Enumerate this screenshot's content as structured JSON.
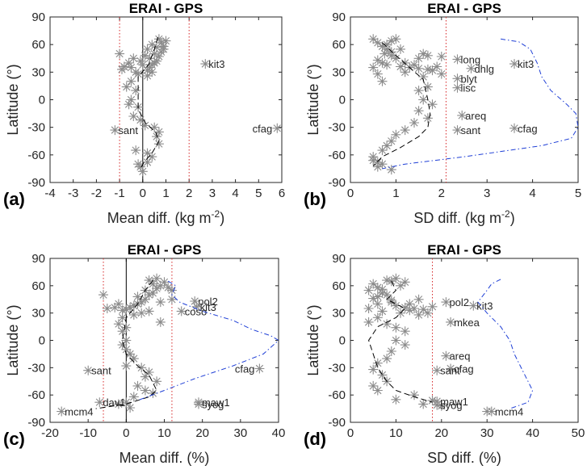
{
  "chart_data": [
    {
      "type": "scatter",
      "panel_label": "(a)",
      "title": "ERAI - GPS",
      "xlabel": "Mean diff. (kg m",
      "xlabel_sup": "-2",
      "xlabel_tail": ")",
      "ylabel": "Latitude (°)",
      "xlim": [
        -4,
        6
      ],
      "ylim": [
        -90,
        90
      ],
      "xticks": [
        -4,
        -3,
        -2,
        -1,
        0,
        1,
        2,
        3,
        4,
        5,
        6
      ],
      "yticks": [
        -90,
        -60,
        -30,
        0,
        30,
        60,
        90
      ],
      "vlines_solid": [
        0
      ],
      "vlines_dotted": [
        -1,
        2
      ],
      "stations": [
        {
          "name": "kit3",
          "x": 2.7,
          "y": 39
        },
        {
          "name": "cfag",
          "x": 5.8,
          "y": -31
        },
        {
          "name": "sant",
          "x": -1.2,
          "y": -33
        }
      ],
      "points": [
        [
          -1.0,
          50
        ],
        [
          -0.8,
          36
        ],
        [
          -0.9,
          33
        ],
        [
          -0.6,
          40
        ],
        [
          -0.4,
          45
        ],
        [
          -0.5,
          35
        ],
        [
          -0.3,
          30
        ],
        [
          -0.2,
          28
        ],
        [
          -0.5,
          20
        ],
        [
          -0.7,
          14
        ],
        [
          -0.3,
          10
        ],
        [
          -0.5,
          0
        ],
        [
          -0.6,
          -5
        ],
        [
          -0.2,
          -8
        ],
        [
          -0.4,
          -18
        ],
        [
          -0.1,
          -22
        ],
        [
          0.1,
          -28
        ],
        [
          0.5,
          -30
        ],
        [
          0.7,
          -35
        ],
        [
          0.6,
          -40
        ],
        [
          0.7,
          -48
        ],
        [
          -0.3,
          -55
        ],
        [
          0.2,
          -58
        ],
        [
          0.4,
          -62
        ],
        [
          -0.2,
          -70
        ],
        [
          0.2,
          -68
        ],
        [
          0.0,
          -78
        ],
        [
          -0.1,
          -73
        ],
        [
          0.2,
          32
        ],
        [
          0.3,
          35
        ],
        [
          0.4,
          38
        ],
        [
          0.5,
          40
        ],
        [
          0.6,
          42
        ],
        [
          0.3,
          45
        ],
        [
          0.7,
          47
        ],
        [
          0.5,
          50
        ],
        [
          0.8,
          52
        ],
        [
          0.9,
          55
        ],
        [
          0.6,
          57
        ],
        [
          0.4,
          60
        ],
        [
          0.8,
          62
        ],
        [
          1.0,
          64
        ],
        [
          0.9,
          58
        ],
        [
          0.7,
          66
        ],
        [
          0.2,
          55
        ],
        [
          -0.1,
          42
        ],
        [
          0.1,
          48
        ],
        [
          0.0,
          38
        ],
        [
          0.2,
          26
        ],
        [
          0.4,
          30
        ]
      ],
      "series": [
        {
          "name": "mean",
          "style": "dashed-black",
          "x": [
            0.65,
            0.5,
            0.25,
            -0.2,
            -0.2,
            0.1,
            0.55,
            0.7,
            0.4,
            0.05,
            -0.1
          ],
          "y": [
            68,
            55,
            38,
            25,
            -10,
            -25,
            -35,
            -45,
            -58,
            -68,
            -75
          ]
        }
      ]
    },
    {
      "type": "scatter",
      "panel_label": "(b)",
      "title": "ERAI - GPS",
      "xlabel": "SD diff. (kg m",
      "xlabel_sup": "-2",
      "xlabel_tail": ")",
      "ylabel": "Latitude (°)",
      "xlim": [
        0,
        5
      ],
      "ylim": [
        -90,
        90
      ],
      "xticks": [
        0,
        1,
        2,
        3,
        4,
        5
      ],
      "yticks": [
        -90,
        -60,
        -30,
        0,
        30,
        60,
        90
      ],
      "vlines_dotted": [
        2.1
      ],
      "stations": [
        {
          "name": "long",
          "x": 2.35,
          "y": 44
        },
        {
          "name": "kit3",
          "x": 3.6,
          "y": 39
        },
        {
          "name": "dhlg",
          "x": 2.65,
          "y": 34
        },
        {
          "name": "blyt",
          "x": 2.35,
          "y": 23
        },
        {
          "name": "lisc",
          "x": 2.35,
          "y": 13
        },
        {
          "name": "areq",
          "x": 2.45,
          "y": -17
        },
        {
          "name": "sant",
          "x": 2.35,
          "y": -33
        },
        {
          "name": "cfag",
          "x": 3.6,
          "y": -31
        }
      ],
      "points": [
        [
          0.6,
          62
        ],
        [
          0.7,
          58
        ],
        [
          0.8,
          55
        ],
        [
          0.75,
          50
        ],
        [
          0.9,
          48
        ],
        [
          1.0,
          45
        ],
        [
          0.7,
          40
        ],
        [
          0.8,
          38
        ],
        [
          1.1,
          36
        ],
        [
          1.3,
          35
        ],
        [
          1.5,
          34
        ],
        [
          1.7,
          33
        ],
        [
          1.8,
          32
        ],
        [
          1.9,
          36
        ],
        [
          0.5,
          35
        ],
        [
          1.2,
          40
        ],
        [
          0.6,
          43
        ],
        [
          0.9,
          52
        ],
        [
          1.1,
          55
        ],
        [
          0.8,
          60
        ],
        [
          0.9,
          64
        ],
        [
          1.0,
          66
        ],
        [
          0.6,
          28
        ],
        [
          0.7,
          20
        ],
        [
          1.5,
          45
        ],
        [
          1.6,
          50
        ],
        [
          1.7,
          48
        ],
        [
          2.0,
          47
        ],
        [
          2.0,
          28
        ],
        [
          1.6,
          25
        ],
        [
          1.7,
          14
        ],
        [
          1.5,
          10
        ],
        [
          1.6,
          0
        ],
        [
          1.8,
          -5
        ],
        [
          1.5,
          -12
        ],
        [
          1.7,
          -20
        ],
        [
          1.4,
          -25
        ],
        [
          1.2,
          -33
        ],
        [
          1.0,
          -38
        ],
        [
          0.9,
          -45
        ],
        [
          0.8,
          -50
        ],
        [
          0.7,
          -55
        ],
        [
          0.5,
          -62
        ],
        [
          0.6,
          -68
        ],
        [
          0.5,
          -66
        ],
        [
          0.7,
          -70
        ],
        [
          0.6,
          -73
        ],
        [
          0.9,
          -76
        ],
        [
          1.2,
          30
        ],
        [
          1.4,
          38
        ],
        [
          0.5,
          66
        ]
      ],
      "series": [
        {
          "name": "mean",
          "style": "dashed-black",
          "x": [
            0.7,
            1.0,
            1.3,
            1.6,
            1.7,
            1.75,
            1.7,
            1.5,
            1.1,
            0.7,
            0.5
          ],
          "y": [
            62,
            48,
            35,
            22,
            0,
            -15,
            -30,
            -40,
            -52,
            -62,
            -72
          ]
        },
        {
          "name": "envelope",
          "style": "dashdot-blue",
          "x": [
            3.3,
            3.7,
            3.95,
            4.1,
            4.2,
            4.4,
            4.75,
            4.95,
            5.0,
            4.85,
            4.2,
            2.5,
            1.2,
            0.7
          ],
          "y": [
            66,
            63,
            55,
            40,
            25,
            10,
            -5,
            -15,
            -30,
            -42,
            -50,
            -62,
            -70,
            -75
          ]
        }
      ]
    },
    {
      "type": "scatter",
      "panel_label": "(c)",
      "title": "ERAI - GPS",
      "xlabel": "Mean diff. (%)",
      "ylabel": "Latitude (°)",
      "xlim": [
        -20,
        40
      ],
      "ylim": [
        -90,
        90
      ],
      "xticks": [
        -20,
        -10,
        0,
        10,
        20,
        30,
        40
      ],
      "yticks": [
        -90,
        -60,
        -30,
        0,
        30,
        60,
        90
      ],
      "vlines_solid": [
        0
      ],
      "vlines_dotted": [
        -6,
        12
      ],
      "stations": [
        {
          "name": "pol2",
          "x": 18,
          "y": 43
        },
        {
          "name": "kit3",
          "x": 18.5,
          "y": 37
        },
        {
          "name": "coso",
          "x": 14.5,
          "y": 32
        },
        {
          "name": "sant",
          "x": -10,
          "y": -33
        },
        {
          "name": "cfag",
          "x": 35,
          "y": -31
        },
        {
          "name": "maw1",
          "x": 19,
          "y": -68
        },
        {
          "name": "syog",
          "x": 19,
          "y": -70
        },
        {
          "name": "dav1",
          "x": -7,
          "y": -68
        },
        {
          "name": "mcm4",
          "x": -17,
          "y": -78
        }
      ],
      "points": [
        [
          -6,
          50
        ],
        [
          -5,
          35
        ],
        [
          -3,
          36
        ],
        [
          -2,
          40
        ],
        [
          -1,
          33
        ],
        [
          0,
          34
        ],
        [
          1,
          36
        ],
        [
          2,
          38
        ],
        [
          3,
          40
        ],
        [
          4,
          42
        ],
        [
          5,
          45
        ],
        [
          3,
          48
        ],
        [
          6,
          50
        ],
        [
          7,
          52
        ],
        [
          5,
          55
        ],
        [
          8,
          57
        ],
        [
          9,
          60
        ],
        [
          7,
          62
        ],
        [
          10,
          64
        ],
        [
          6,
          66
        ],
        [
          8,
          68
        ],
        [
          11,
          58
        ],
        [
          12,
          55
        ],
        [
          12,
          45
        ],
        [
          9,
          42
        ],
        [
          -1,
          25
        ],
        [
          -2,
          18
        ],
        [
          0,
          14
        ],
        [
          -1,
          10
        ],
        [
          0,
          0
        ],
        [
          -1,
          -5
        ],
        [
          0,
          -10
        ],
        [
          1,
          -15
        ],
        [
          2,
          -20
        ],
        [
          0,
          -28
        ],
        [
          4,
          -30
        ],
        [
          6,
          -35
        ],
        [
          5,
          -40
        ],
        [
          8,
          -45
        ],
        [
          3,
          -50
        ],
        [
          5,
          -55
        ],
        [
          7,
          -58
        ],
        [
          2,
          -62
        ],
        [
          -2,
          -70
        ],
        [
          0,
          -68
        ],
        [
          1,
          -74
        ],
        [
          4,
          30
        ],
        [
          6,
          32
        ],
        [
          2,
          28
        ],
        [
          9,
          20
        ]
      ],
      "series": [
        {
          "name": "mean",
          "style": "dashed-black",
          "x": [
            7,
            5,
            3,
            0,
            -1,
            0,
            3,
            6,
            8,
            6,
            0,
            -8
          ],
          "y": [
            66,
            55,
            40,
            25,
            0,
            -15,
            -28,
            -38,
            -55,
            -62,
            -70,
            -75
          ]
        },
        {
          "name": "envelope",
          "style": "dashdot-blue",
          "x": [
            11,
            13,
            12,
            14,
            20,
            28,
            33,
            38,
            40,
            36,
            28,
            18,
            10,
            3
          ],
          "y": [
            65,
            60,
            50,
            42,
            32,
            22,
            12,
            5,
            0,
            -15,
            -28,
            -42,
            -55,
            -66
          ]
        }
      ]
    },
    {
      "type": "scatter",
      "panel_label": "(d)",
      "title": "ERAI - GPS",
      "xlabel": "SD diff. (%)",
      "ylabel": "Latitude (°)",
      "xlim": [
        0,
        50
      ],
      "ylim": [
        -90,
        90
      ],
      "xticks": [
        0,
        10,
        20,
        30,
        40,
        50
      ],
      "yticks": [
        -90,
        -60,
        -30,
        0,
        30,
        60,
        90
      ],
      "vlines_dotted": [
        18
      ],
      "stations": [
        {
          "name": "pol2",
          "x": 21,
          "y": 42
        },
        {
          "name": "kit3",
          "x": 27,
          "y": 38
        },
        {
          "name": "mkea",
          "x": 22,
          "y": 20
        },
        {
          "name": "areq",
          "x": 21,
          "y": -17
        },
        {
          "name": "cfag",
          "x": 22,
          "y": -31
        },
        {
          "name": "sant",
          "x": 19,
          "y": -33
        },
        {
          "name": "maw1",
          "x": 19,
          "y": -67
        },
        {
          "name": "syog",
          "x": 19,
          "y": -71
        },
        {
          "name": "mcm4",
          "x": 31,
          "y": -78
        }
      ],
      "points": [
        [
          5,
          62
        ],
        [
          6,
          58
        ],
        [
          4,
          55
        ],
        [
          7,
          52
        ],
        [
          8,
          50
        ],
        [
          5,
          46
        ],
        [
          9,
          44
        ],
        [
          6,
          40
        ],
        [
          10,
          38
        ],
        [
          12,
          36
        ],
        [
          14,
          35
        ],
        [
          16,
          34
        ],
        [
          4,
          35
        ],
        [
          7,
          32
        ],
        [
          11,
          30
        ],
        [
          13,
          40
        ],
        [
          9,
          65
        ],
        [
          10,
          68
        ],
        [
          8,
          66
        ],
        [
          12,
          64
        ],
        [
          6,
          48
        ],
        [
          15,
          45
        ],
        [
          18,
          37
        ],
        [
          17,
          30
        ],
        [
          6,
          25
        ],
        [
          4,
          20
        ],
        [
          8,
          18
        ],
        [
          10,
          14
        ],
        [
          12,
          10
        ],
        [
          10,
          0
        ],
        [
          12,
          -5
        ],
        [
          9,
          -12
        ],
        [
          8,
          -20
        ],
        [
          6,
          -25
        ],
        [
          5,
          -32
        ],
        [
          7,
          -38
        ],
        [
          8,
          -45
        ],
        [
          5,
          -50
        ],
        [
          6,
          -55
        ],
        [
          14,
          -60
        ],
        [
          18,
          -66
        ],
        [
          16,
          -70
        ],
        [
          10,
          -65
        ],
        [
          20,
          -72
        ],
        [
          30,
          -78
        ],
        [
          7,
          56
        ],
        [
          11,
          60
        ],
        [
          9,
          42
        ],
        [
          13,
          33
        ],
        [
          15,
          28
        ]
      ],
      "series": [
        {
          "name": "mean",
          "style": "dashed-black",
          "x": [
            9,
            10,
            8,
            12,
            10,
            6,
            4,
            5,
            6,
            8,
            10,
            14,
            18
          ],
          "y": [
            65,
            55,
            45,
            35,
            25,
            15,
            0,
            -15,
            -30,
            -45,
            -55,
            -62,
            -68
          ]
        },
        {
          "name": "envelope",
          "style": "dashdot-blue",
          "x": [
            33,
            31,
            30,
            28,
            30,
            33,
            35,
            36,
            38,
            40,
            39,
            35
          ],
          "y": [
            67,
            62,
            55,
            42,
            30,
            15,
            0,
            -15,
            -35,
            -55,
            -68,
            -75
          ]
        }
      ]
    }
  ]
}
